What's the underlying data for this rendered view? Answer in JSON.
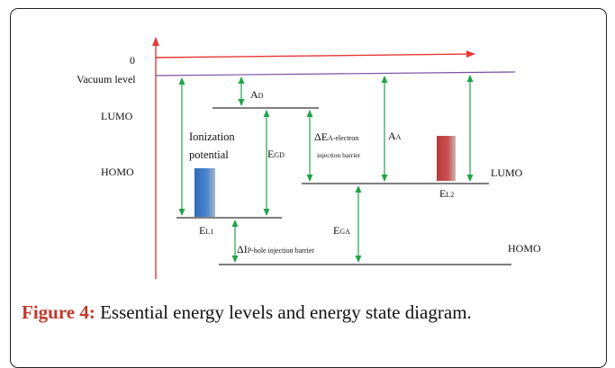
{
  "labels": {
    "zero": "0",
    "vacuum_level": "Vacuum level",
    "lumo_left": "LUMO",
    "homo_left": "HOMO",
    "ad_main": "A",
    "ad_sub": "D",
    "ionization_line1": "Ionization",
    "ionization_line2": "potential",
    "egd_main": "E",
    "egd_sub": "GD",
    "delta_ea_main": "ΔE",
    "delta_ea_sub": "A-electron",
    "injection_barrier": "injection barrier",
    "aa_main": "A",
    "aa_sub": "A",
    "lumo_right": "LUMO",
    "el2_main": "E",
    "el2_sub": "L2",
    "el1_main": "E",
    "el1_sub": "L1",
    "ega_main": "E",
    "ega_sub": "GA",
    "delta_ip_main": "ΔI",
    "delta_ip_sub": "P-hole injection barrier",
    "homo_right": "HOMO"
  },
  "caption": {
    "label": "Figure 4:",
    "text": " Essential energy levels and energy state diagram."
  },
  "colors": {
    "axis": "#e53935",
    "vacuum_line": "#7b4fa0",
    "arrow": "#21a34a",
    "level_line": "#333333",
    "electrode_left": "#3b78c4",
    "electrode_right": "#c04444"
  }
}
